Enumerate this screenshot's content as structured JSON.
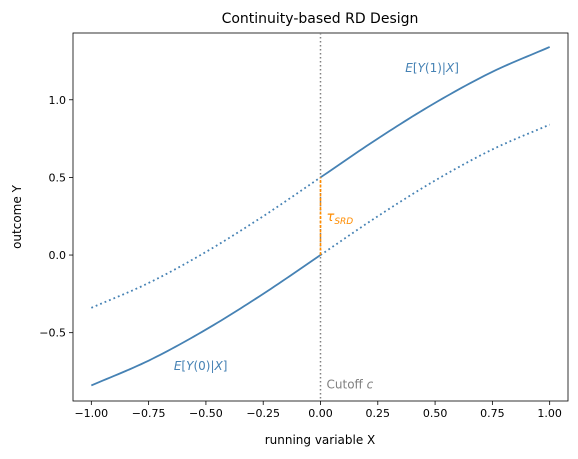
{
  "chart_data": {
    "type": "line",
    "title": "Continuity-based RD Design",
    "xlabel": "running variable X",
    "ylabel": "outcome Y",
    "xlim": [
      -1.08,
      1.08
    ],
    "ylim": [
      -0.94,
      1.43
    ],
    "xticks": [
      -1.0,
      -0.75,
      -0.5,
      -0.25,
      0.0,
      0.25,
      0.5,
      0.75,
      1.0
    ],
    "xtick_labels": [
      "−1.00",
      "−0.75",
      "−0.50",
      "−0.25",
      "0.00",
      "0.25",
      "0.50",
      "0.75",
      "1.00"
    ],
    "yticks": [
      -0.5,
      0.0,
      0.5,
      1.0
    ],
    "ytick_labels": [
      "−0.5",
      "0.0",
      "0.5",
      "1.0"
    ],
    "grid": false,
    "cutoff": {
      "x": 0.0,
      "label": "Cutoff c",
      "color": "#808080"
    },
    "effect": {
      "label": "τ",
      "subscript": "SRD",
      "color": "#ff8c00",
      "y0": 0.0,
      "y1": 0.5
    },
    "series": [
      {
        "name": "E[Y(0)|X]",
        "color": "#4682b4",
        "x": [
          -1.0,
          -0.75,
          -0.5,
          -0.25,
          0.0,
          0.25,
          0.5,
          0.75,
          1.0
        ],
        "y": [
          -0.84,
          -0.68,
          -0.48,
          -0.25,
          0.0,
          0.25,
          0.48,
          0.68,
          0.84
        ],
        "segments": [
          {
            "x_from": -1.0,
            "x_to": 0.0,
            "style": "solid"
          },
          {
            "x_from": 0.0,
            "x_to": 1.0,
            "style": "dotted"
          }
        ]
      },
      {
        "name": "E[Y(1)|X]",
        "color": "#4682b4",
        "x": [
          -1.0,
          -0.75,
          -0.5,
          -0.25,
          0.0,
          0.25,
          0.5,
          0.75,
          1.0
        ],
        "y": [
          -0.34,
          -0.18,
          0.02,
          0.25,
          0.5,
          0.75,
          0.98,
          1.18,
          1.34
        ],
        "segments": [
          {
            "x_from": -1.0,
            "x_to": 0.0,
            "style": "dotted"
          },
          {
            "x_from": 0.0,
            "x_to": 1.0,
            "style": "solid"
          }
        ]
      }
    ],
    "annotations": [
      {
        "series": "E[Y(1)|X]",
        "text_parts": [
          "E",
          "[",
          "Y",
          "(1)|",
          "X",
          "]"
        ],
        "x": 0.37,
        "y": 1.18
      },
      {
        "series": "E[Y(0)|X]",
        "text_parts": [
          "E",
          "[",
          "Y",
          "(0)|",
          "X",
          "]"
        ],
        "x": -0.64,
        "y": -0.74
      }
    ]
  }
}
